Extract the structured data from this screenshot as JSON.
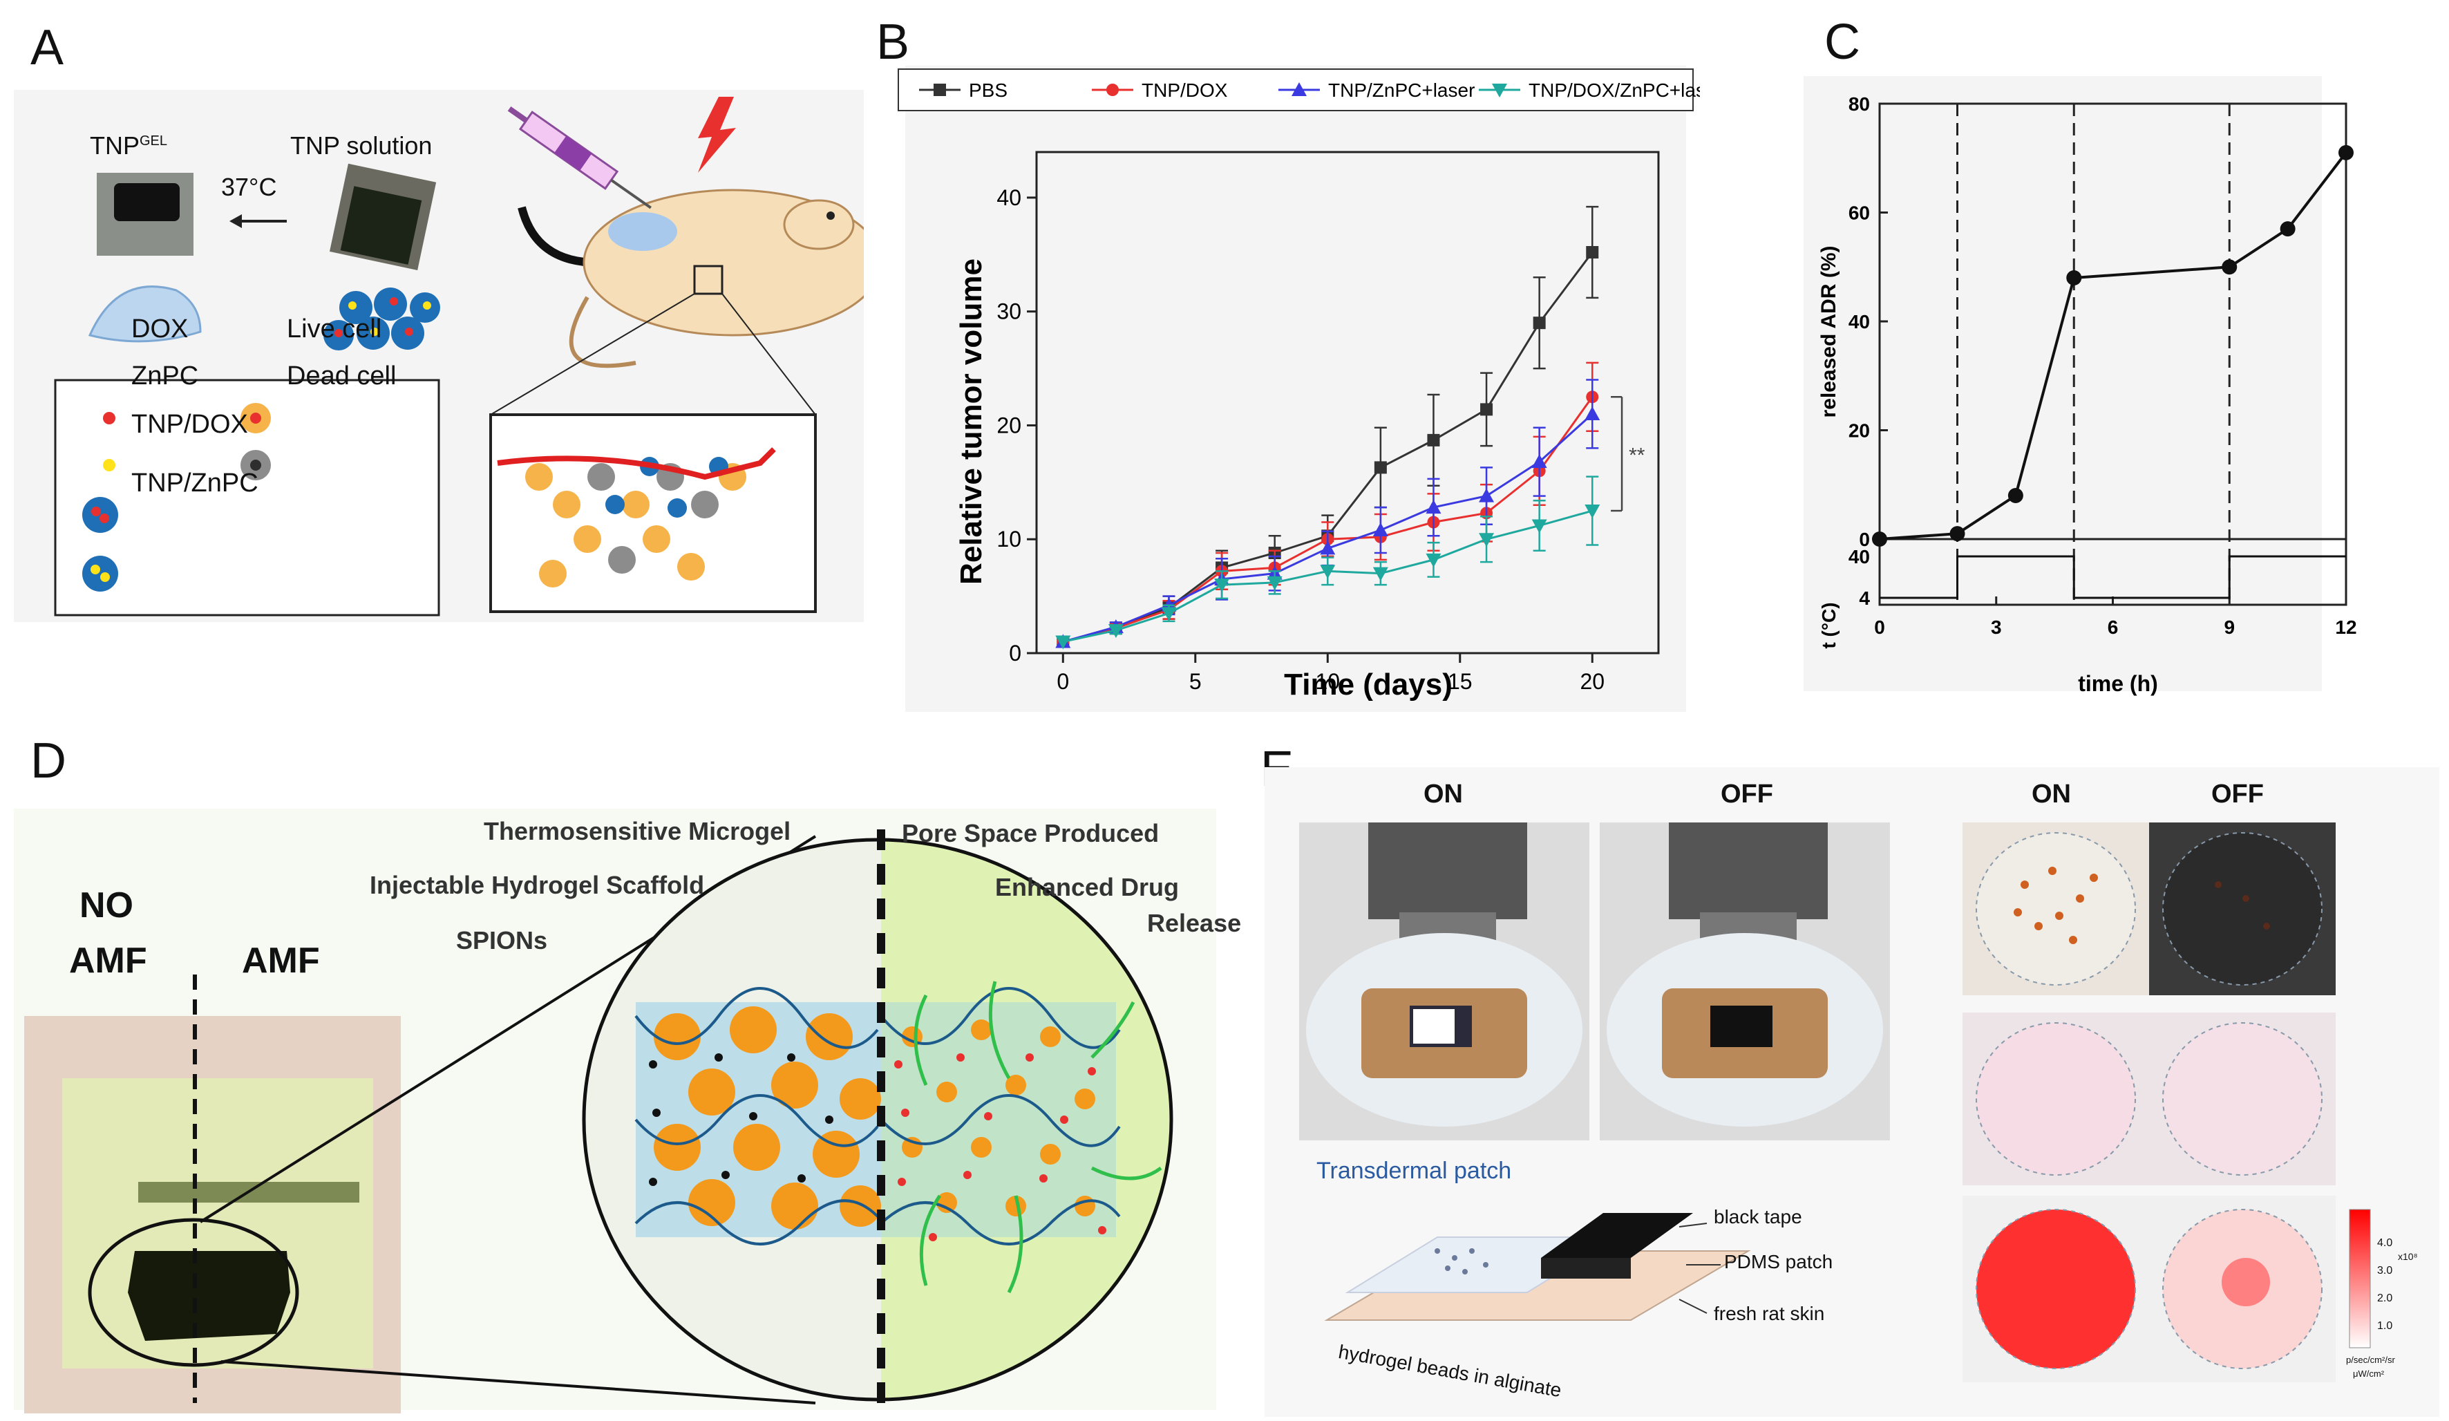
{
  "panels": {
    "A": {
      "label": "A",
      "tnp_gel": "TNP",
      "tnp_gel_sup": "GEL",
      "tnp_solution": "TNP solution",
      "temperature": "37°C",
      "legend": {
        "dox": "DOX",
        "live_cell": "Live cell",
        "znpc": "ZnPC",
        "dead_cell": "Dead cell",
        "tnp_dox": "TNP/DOX",
        "tnp_znpc": "TNP/ZnPC"
      }
    },
    "D": {
      "label": "D",
      "no_amf_1": "NO",
      "no_amf_2": "AMF",
      "amf": "AMF",
      "thermo_microgel": "Thermosensitive Microgel",
      "hydrogel_scaffold": "Injectable Hydrogel Scaffold",
      "spions": "SPIONs",
      "pore_space": "Pore Space Produced",
      "enhanced_1": "Enhanced Drug",
      "enhanced_2": "Release"
    },
    "E": {
      "label": "E",
      "on_left": "ON",
      "off_left": "OFF",
      "on_right": "ON",
      "off_right": "OFF",
      "transdermal": "Transdermal patch",
      "black_tape": "black tape",
      "pdms": "PDMS patch",
      "rat_skin": "fresh rat skin",
      "beads": "hydrogel beads in alginate",
      "colorbar_ticks": [
        "4.0",
        "3.0",
        "2.0",
        "1.0"
      ],
      "colorbar_exp": "x10⁸",
      "colorbar_unit_1": "p/sec/cm²/sr",
      "colorbar_unit_2": "μW/cm²"
    }
  },
  "chart_data": [
    {
      "id": "B",
      "label": "B",
      "type": "line",
      "title": "",
      "xlabel": "Time (days)",
      "ylabel": "Relative tumor volume",
      "xlim": [
        -1,
        22.5
      ],
      "ylim": [
        0,
        44
      ],
      "xticks": [
        0,
        5,
        10,
        15,
        20
      ],
      "yticks": [
        0,
        10,
        20,
        30,
        40
      ],
      "x": [
        0,
        2,
        4,
        6,
        8,
        10,
        12,
        14,
        16,
        18,
        20
      ],
      "series": [
        {
          "name": "PBS",
          "color": "#333333",
          "marker": "square",
          "values": [
            1,
            2.2,
            4,
            7.5,
            8.8,
            10.3,
            16.3,
            18.7,
            21.4,
            29,
            35.2
          ],
          "errors": [
            0,
            0.5,
            1.0,
            1.5,
            1.5,
            1.8,
            3.5,
            4.0,
            3.2,
            4.0,
            4.0
          ]
        },
        {
          "name": "TNP/DOX",
          "color": "#e8302f",
          "marker": "circle",
          "values": [
            1,
            2.2,
            3.8,
            7.2,
            7.5,
            10,
            10.2,
            11.5,
            12.3,
            16,
            22.5
          ],
          "errors": [
            0,
            0.4,
            0.8,
            1.6,
            1.5,
            1.5,
            2.0,
            2.5,
            2.5,
            3.0,
            3.0
          ]
        },
        {
          "name": "TNP/ZnPC+laser",
          "color": "#3a3ae0",
          "marker": "triangle-up",
          "values": [
            1,
            2.3,
            4.2,
            6.5,
            7,
            9.2,
            10.8,
            12.8,
            13.8,
            16.8,
            21
          ],
          "errors": [
            0,
            0.4,
            0.8,
            1.8,
            1.5,
            1.5,
            2.0,
            2.5,
            2.5,
            3.0,
            3.0
          ]
        },
        {
          "name": "TNP/DOX/ZnPC+laser",
          "color": "#1fa89e",
          "marker": "triangle-down",
          "values": [
            1,
            2,
            3.5,
            6,
            6.2,
            7.2,
            7,
            8.2,
            10,
            11.2,
            12.5
          ],
          "errors": [
            0,
            0.3,
            0.7,
            1.2,
            1.0,
            1.2,
            1.0,
            1.5,
            2.0,
            2.2,
            3.0
          ]
        }
      ],
      "annotation": "**"
    },
    {
      "id": "C",
      "label": "C",
      "type": "line",
      "title": "",
      "xlabel": "time (h)",
      "ylabel": "released ADR (%)",
      "ylabel_bottom": "t (°C)",
      "xlim": [
        0,
        12
      ],
      "ylim": [
        0,
        80
      ],
      "xticks": [
        0,
        3,
        6,
        9,
        12
      ],
      "yticks": [
        0,
        20,
        40,
        60,
        80
      ],
      "x": [
        0,
        2,
        3.5,
        5,
        9,
        10.5,
        12
      ],
      "values": [
        0,
        1,
        8,
        48,
        50,
        57,
        71
      ],
      "switch_times": [
        2,
        5,
        9
      ],
      "temp_ticks": [
        40,
        4
      ],
      "temperature": {
        "x": [
          0,
          2,
          2,
          5,
          5,
          9,
          9,
          12
        ],
        "y": [
          4,
          4,
          40,
          40,
          4,
          4,
          40,
          40
        ]
      }
    }
  ]
}
